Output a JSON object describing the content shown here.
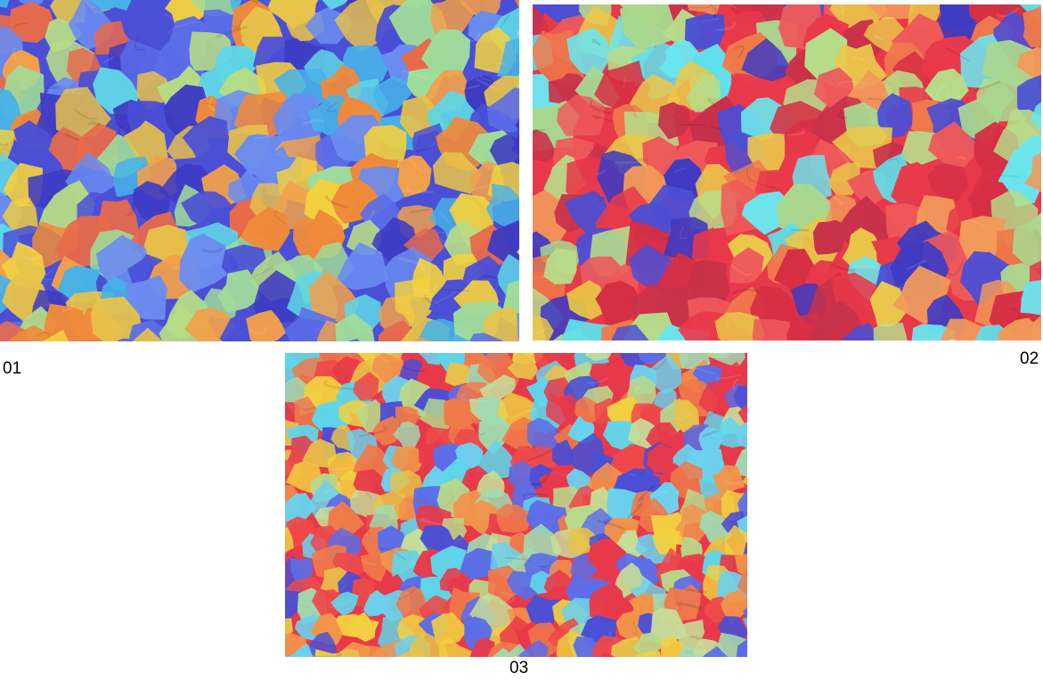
{
  "panels": [
    {
      "caption": "01",
      "palette": [
        "#4a4fd6",
        "#5b6ee8",
        "#3e3bc2",
        "#6a8cf0",
        "#47b3e8",
        "#5fd6e6",
        "#f08a3a",
        "#f2a04a",
        "#e86a4a",
        "#9fdc9a",
        "#b6dc86",
        "#e8c24a",
        "#f2d040"
      ],
      "dominant_colors": [
        "blue",
        "indigo",
        "orange",
        "cyan",
        "light-green"
      ]
    },
    {
      "caption": "02",
      "palette": [
        "#e8394a",
        "#d62f44",
        "#c8324a",
        "#ee5a5a",
        "#f07a4a",
        "#f29a5a",
        "#b6dc8a",
        "#a8d890",
        "#5fe0ea",
        "#6ae6ee",
        "#4a4fd6",
        "#3e3bc2",
        "#eac84a"
      ],
      "dominant_colors": [
        "red",
        "crimson",
        "light-green",
        "cyan",
        "orange"
      ]
    },
    {
      "caption": "03",
      "palette": [
        "#e8394a",
        "#ee4a4a",
        "#f07a4a",
        "#f2944a",
        "#c6de98",
        "#b8d88a",
        "#5fd6ea",
        "#6ad2ee",
        "#4a4fd6",
        "#5b6ee8",
        "#e8c24a",
        "#f2d040",
        "#9fdcb0"
      ],
      "dominant_colors": [
        "red",
        "light-green",
        "orange",
        "cyan",
        "blue"
      ]
    }
  ]
}
